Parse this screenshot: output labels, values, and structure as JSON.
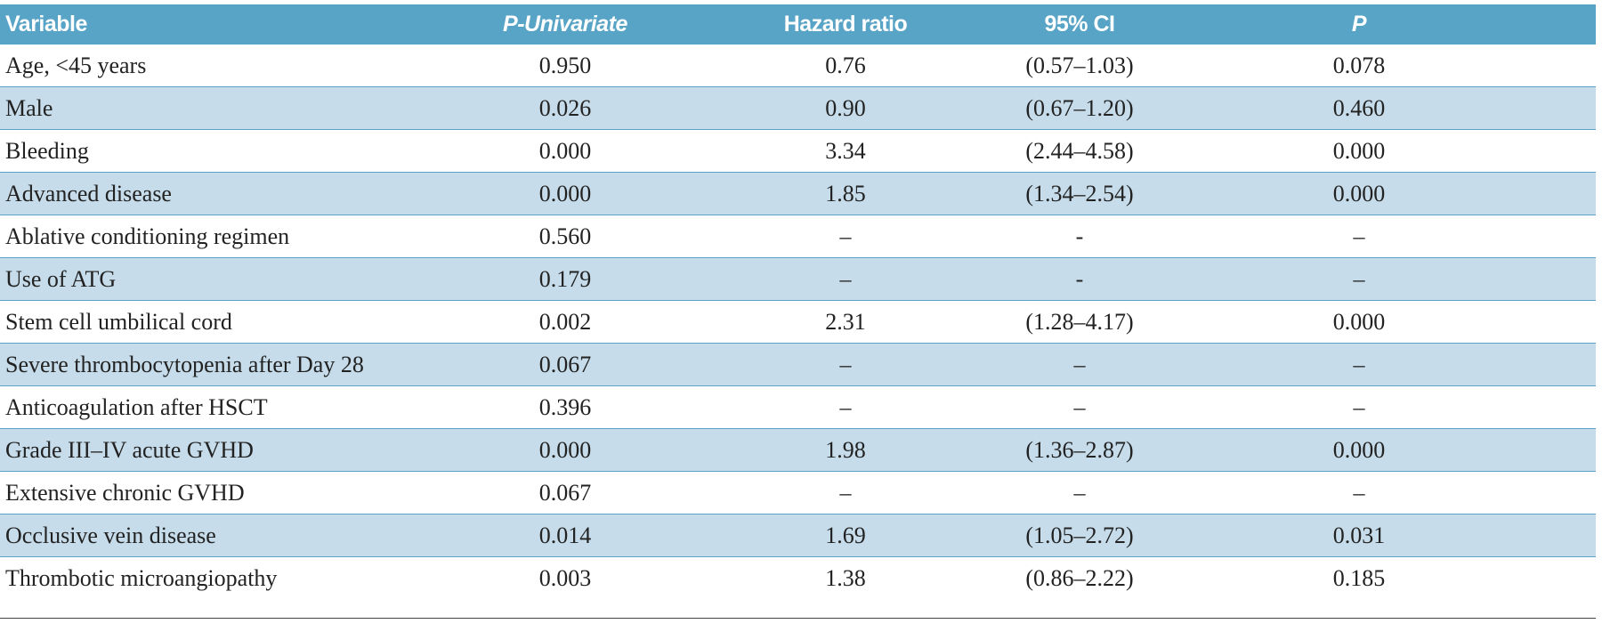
{
  "header": {
    "columns": [
      "Variable",
      "P-Univariate",
      "Hazard ratio",
      "95% CI",
      "P"
    ]
  },
  "table": {
    "rows": [
      [
        "Age, <45 years",
        "0.950",
        "0.76",
        "(0.57–1.03)",
        "0.078"
      ],
      [
        "Male",
        "0.026",
        "0.90",
        "(0.67–1.20)",
        "0.460"
      ],
      [
        "Bleeding",
        "0.000",
        "3.34",
        "(2.44–4.58)",
        "0.000"
      ],
      [
        "Advanced disease",
        "0.000",
        "1.85",
        "(1.34–2.54)",
        "0.000"
      ],
      [
        "Ablative conditioning regimen",
        "0.560",
        "–",
        "-",
        "–"
      ],
      [
        "Use of ATG",
        "0.179",
        "–",
        "-",
        "–"
      ],
      [
        "Stem cell umbilical cord",
        "0.002",
        "2.31",
        "(1.28–4.17)",
        "0.000"
      ],
      [
        "Severe thrombocytopenia after Day 28",
        "0.067",
        "–",
        "–",
        "–"
      ],
      [
        "Anticoagulation after HSCT",
        "0.396",
        "–",
        "–",
        "–"
      ],
      [
        "Grade III–IV acute GVHD",
        "0.000",
        "1.98",
        "(1.36–2.87)",
        "0.000"
      ],
      [
        "Extensive chronic GVHD",
        "0.067",
        "–",
        "–",
        "–"
      ],
      [
        "Occlusive vein disease",
        "0.014",
        "1.69",
        "(1.05–2.72)",
        "0.031"
      ],
      [
        "Thrombotic microangiopathy",
        "0.003",
        "1.38",
        "(0.86–2.22)",
        "0.185"
      ]
    ]
  }
}
